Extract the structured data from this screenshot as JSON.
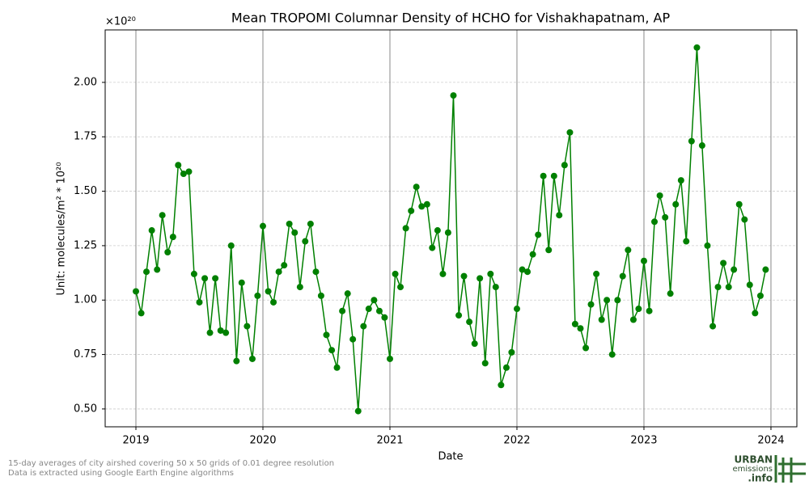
{
  "chart_data": {
    "type": "line",
    "title": "Mean TROPOMI Columnar Density of HCHO for Vishakhapatnam, AP",
    "xlabel": "Date",
    "ylabel": "Unit: molecules/m² * 10²⁰",
    "y_offset_label": "×10²⁰",
    "footnotes": [
      "15-day averages of city airshed covering 50 x 50 grids of 0.01 degree resolution",
      "Data is extracted using Google Earth Engine algorithms"
    ],
    "logo": [
      "URBAN",
      "emissions",
      ".info"
    ],
    "x": [
      2019,
      2019.042,
      2019.083,
      2019.125,
      2019.167,
      2019.208,
      2019.25,
      2019.292,
      2019.333,
      2019.375,
      2019.417,
      2019.458,
      2019.5,
      2019.542,
      2019.583,
      2019.625,
      2019.667,
      2019.708,
      2019.75,
      2019.792,
      2019.833,
      2019.875,
      2019.917,
      2019.958,
      2020,
      2020.042,
      2020.083,
      2020.125,
      2020.167,
      2020.208,
      2020.25,
      2020.292,
      2020.333,
      2020.375,
      2020.417,
      2020.458,
      2020.5,
      2020.542,
      2020.583,
      2020.625,
      2020.667,
      2020.708,
      2020.75,
      2020.792,
      2020.833,
      2020.875,
      2020.917,
      2020.958,
      2021,
      2021.042,
      2021.083,
      2021.125,
      2021.167,
      2021.208,
      2021.25,
      2021.292,
      2021.333,
      2021.375,
      2021.417,
      2021.458,
      2021.5,
      2021.542,
      2021.583,
      2021.625,
      2021.667,
      2021.708,
      2021.75,
      2021.792,
      2021.833,
      2021.875,
      2021.917,
      2021.958,
      2022,
      2022.042,
      2022.083,
      2022.125,
      2022.167,
      2022.208,
      2022.25,
      2022.292,
      2022.333,
      2022.375,
      2022.417,
      2022.458,
      2022.5,
      2022.542,
      2022.583,
      2022.625,
      2022.667,
      2022.708,
      2022.75,
      2022.792,
      2022.833,
      2022.875,
      2022.917,
      2022.958,
      2023,
      2023.042,
      2023.083,
      2023.125,
      2023.167,
      2023.208,
      2023.25,
      2023.292,
      2023.333,
      2023.375,
      2023.417,
      2023.458,
      2023.5,
      2023.542,
      2023.583,
      2023.625,
      2023.667,
      2023.708,
      2023.75,
      2023.792,
      2023.833,
      2023.875,
      2023.917,
      2023.958
    ],
    "series": [
      {
        "color": "#008000",
        "values": [
          1.04,
          0.94,
          1.13,
          1.32,
          1.14,
          1.39,
          1.22,
          1.29,
          1.62,
          1.58,
          1.59,
          1.12,
          0.99,
          1.1,
          0.85,
          1.1,
          0.86,
          0.85,
          1.25,
          0.72,
          1.08,
          0.88,
          0.73,
          1.02,
          1.34,
          1.04,
          0.99,
          1.13,
          1.16,
          1.35,
          1.31,
          1.06,
          1.27,
          1.35,
          1.13,
          1.02,
          0.84,
          0.77,
          0.69,
          0.95,
          1.03,
          0.82,
          0.49,
          0.88,
          0.96,
          1.0,
          0.95,
          0.92,
          0.73,
          1.12,
          1.06,
          1.33,
          1.41,
          1.52,
          1.43,
          1.44,
          1.24,
          1.32,
          1.12,
          1.31,
          1.94,
          0.93,
          1.11,
          0.9,
          0.8,
          1.1,
          0.71,
          1.12,
          1.06,
          0.61,
          0.69,
          0.76,
          0.96,
          1.14,
          1.13,
          1.21,
          1.3,
          1.57,
          1.23,
          1.57,
          1.39,
          1.62,
          1.77,
          0.89,
          0.87,
          0.78,
          0.98,
          1.12,
          0.91,
          1.0,
          0.75,
          1.0,
          1.11,
          1.23,
          0.91,
          0.96,
          1.18,
          0.95,
          1.36,
          1.48,
          1.38,
          1.03,
          1.44,
          1.55,
          1.27,
          1.73,
          2.16,
          1.71,
          1.25,
          0.88,
          1.06,
          1.17,
          1.06,
          1.14,
          1.44,
          1.37,
          1.07,
          0.94,
          1.02,
          1.14
        ]
      }
    ],
    "xlim": [
      2018.758,
      2024.204
    ],
    "ylim": [
      0.418,
      2.241
    ],
    "xticks": [
      2019,
      2020,
      2021,
      2022,
      2023,
      2024
    ],
    "yticks": [
      {
        "value": 0.5,
        "label": "0.50"
      },
      {
        "value": 0.75,
        "label": "0.75"
      },
      {
        "value": 1.0,
        "label": "1.00"
      },
      {
        "value": 1.25,
        "label": "1.25"
      },
      {
        "value": 1.5,
        "label": "1.50"
      },
      {
        "value": 1.75,
        "label": "1.75"
      },
      {
        "value": 2.0,
        "label": "2.00"
      }
    ],
    "grid": true
  }
}
